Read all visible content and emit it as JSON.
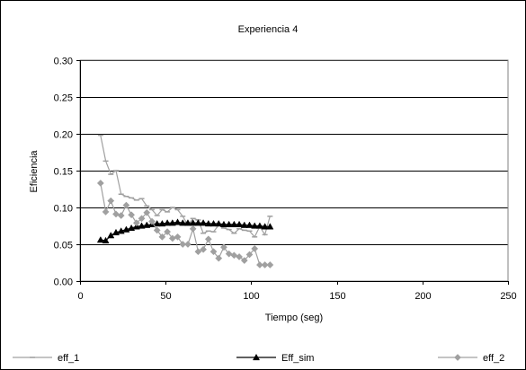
{
  "chart_data": {
    "type": "line",
    "title": "Experiencia 4",
    "xlabel": "Tiempo (seg)",
    "ylabel": "Eficiencia",
    "xlim": [
      0,
      250
    ],
    "ylim": [
      0,
      0.3
    ],
    "xticks": [
      0,
      50,
      100,
      150,
      200,
      250
    ],
    "yticks": [
      0.0,
      0.05,
      0.1,
      0.15,
      0.2,
      0.25,
      0.3
    ],
    "ytick_labels": [
      "0.00",
      "0.05",
      "0.10",
      "0.15",
      "0.20",
      "0.25",
      "0.30"
    ],
    "xtick_labels": [
      "0",
      "50",
      "100",
      "150",
      "200",
      "250"
    ],
    "grid": "horizontal",
    "legend": "bottom",
    "series": [
      {
        "name": "eff_1",
        "color": "#a0a0a0",
        "marker": "dash",
        "x": [
          12,
          15,
          18,
          21,
          24,
          27,
          30,
          33,
          36,
          39,
          42,
          45,
          48,
          51,
          54,
          57,
          60,
          63,
          66,
          69,
          72,
          75,
          78,
          81,
          84,
          87,
          90,
          93,
          96,
          99,
          102,
          105,
          108,
          111
        ],
        "y": [
          0.198,
          0.163,
          0.145,
          0.15,
          0.118,
          0.115,
          0.113,
          0.11,
          0.112,
          0.102,
          0.097,
          0.089,
          0.097,
          0.094,
          0.1,
          0.097,
          0.088,
          0.076,
          0.085,
          0.083,
          0.065,
          0.068,
          0.067,
          0.076,
          0.072,
          0.07,
          0.065,
          0.071,
          0.069,
          0.068,
          0.06,
          0.074,
          0.063,
          0.088
        ]
      },
      {
        "name": "Eff_sim",
        "color": "#000000",
        "marker": "triangle",
        "x": [
          12,
          15,
          18,
          21,
          24,
          27,
          30,
          33,
          36,
          39,
          42,
          45,
          48,
          51,
          54,
          57,
          60,
          63,
          66,
          69,
          72,
          75,
          78,
          81,
          84,
          87,
          90,
          93,
          96,
          99,
          102,
          105,
          108,
          111
        ],
        "y": [
          0.056,
          0.055,
          0.062,
          0.066,
          0.068,
          0.07,
          0.072,
          0.074,
          0.075,
          0.076,
          0.077,
          0.078,
          0.078,
          0.079,
          0.079,
          0.08,
          0.079,
          0.079,
          0.079,
          0.079,
          0.079,
          0.078,
          0.078,
          0.078,
          0.077,
          0.077,
          0.077,
          0.077,
          0.076,
          0.076,
          0.075,
          0.075,
          0.074,
          0.074
        ]
      },
      {
        "name": "eff_2",
        "color": "#a0a0a0",
        "marker": "diamond",
        "x": [
          12,
          15,
          18,
          21,
          24,
          27,
          30,
          33,
          36,
          39,
          42,
          45,
          48,
          51,
          54,
          57,
          60,
          63,
          66,
          69,
          72,
          75,
          78,
          81,
          84,
          87,
          90,
          93,
          96,
          99,
          102,
          105,
          108,
          111
        ],
        "y": [
          0.133,
          0.094,
          0.109,
          0.091,
          0.089,
          0.103,
          0.09,
          0.079,
          0.085,
          0.093,
          0.081,
          0.069,
          0.06,
          0.067,
          0.058,
          0.06,
          0.05,
          0.05,
          0.071,
          0.04,
          0.043,
          0.057,
          0.04,
          0.031,
          0.046,
          0.037,
          0.035,
          0.033,
          0.028,
          0.036,
          0.044,
          0.022,
          0.022,
          0.022
        ]
      }
    ]
  }
}
